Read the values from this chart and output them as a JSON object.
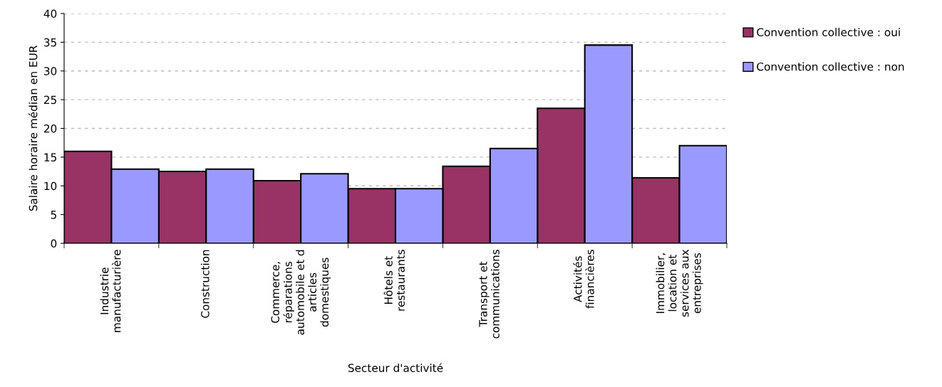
{
  "chart_data": {
    "type": "bar",
    "xlabel": "Secteur d'activité",
    "ylabel": "Salaire horaire médian en EUR",
    "categories": [
      "Industrie\nmanufacturière",
      "Construction",
      "Commerce,\nréparations\nautomobile et d\narticles\ndomestiques",
      "Hôtels et\nrestaurants",
      "Transport et\ncommunications",
      "Activités\nfinancières",
      "Immobilier,\nlocation et\nservices aux\nentreprises"
    ],
    "series": [
      {
        "name": "Convention collective : oui",
        "color": "#993366",
        "values": [
          16.0,
          12.5,
          10.9,
          9.5,
          13.4,
          23.5,
          11.4
        ]
      },
      {
        "name": "Convention collective : non",
        "color": "#9999ff",
        "values": [
          12.9,
          12.9,
          12.1,
          9.5,
          16.5,
          34.5,
          17.0
        ]
      }
    ],
    "ylim": [
      0,
      40
    ],
    "yticks": [
      0,
      5,
      10,
      15,
      20,
      25,
      30,
      35,
      40
    ],
    "grid": "y",
    "legend": "right"
  }
}
